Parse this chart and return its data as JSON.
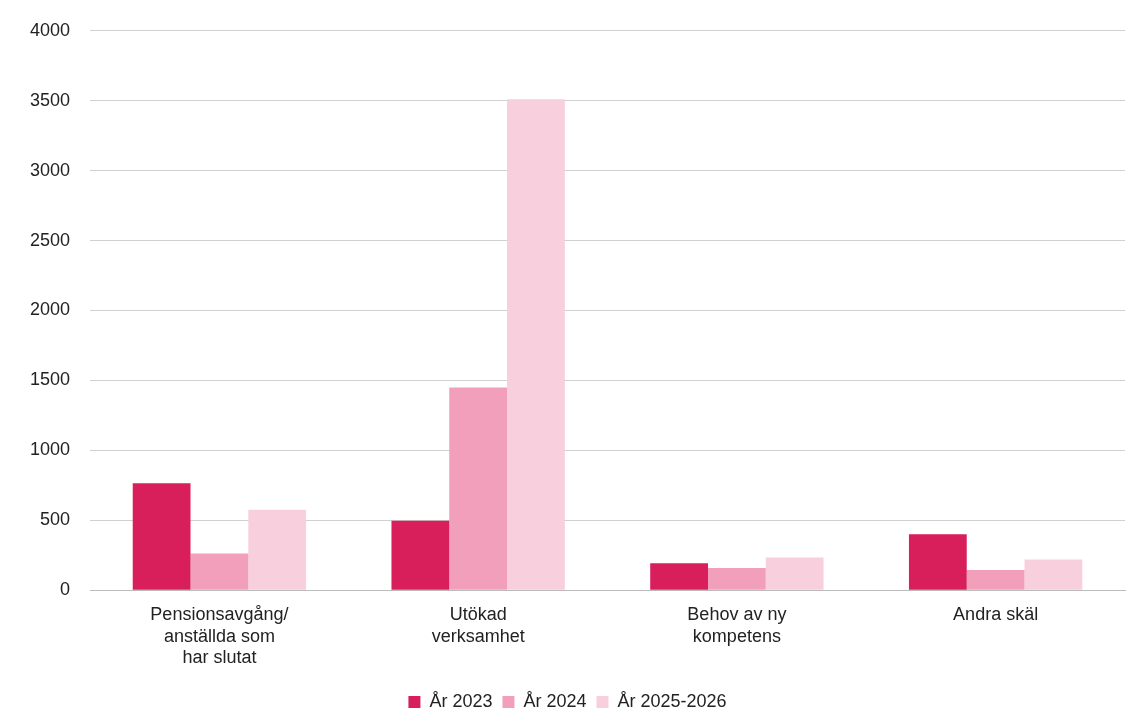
{
  "chart_data": {
    "type": "bar",
    "categories": [
      "Pensionsavgång/ anställda som har slutat",
      "Utökad verksamhet",
      "Behov av ny kompetens",
      "Andra skäl"
    ],
    "series": [
      {
        "name": "År 2023",
        "color": "#d81e5b",
        "values": [
          765,
          497,
          193,
          400
        ]
      },
      {
        "name": "År 2024",
        "color": "#f29fbb",
        "values": [
          262,
          1450,
          159,
          145
        ]
      },
      {
        "name": "År 2025-2026",
        "color": "#f8cfdc",
        "values": [
          575,
          3510,
          234,
          220
        ]
      }
    ],
    "ylim": [
      0,
      4000
    ],
    "yticks": [
      0,
      500,
      1000,
      1500,
      2000,
      2500,
      3000,
      3500,
      4000
    ],
    "grid": "y",
    "legend": "bottom"
  }
}
